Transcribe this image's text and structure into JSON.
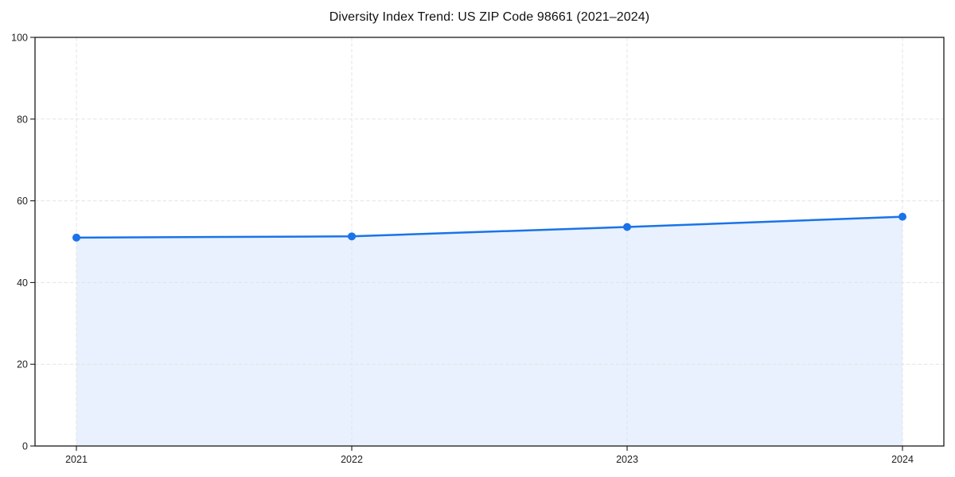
{
  "page": {
    "background": "#ffffff"
  },
  "chart_data": {
    "type": "area",
    "title": "Diversity Index Trend: US ZIP Code 98661 (2021–2024)",
    "x": [
      "2021",
      "2022",
      "2023",
      "2024"
    ],
    "series": [
      {
        "name": "Diversity Index",
        "values": [
          51.0,
          51.3,
          53.6,
          56.1
        ]
      }
    ],
    "xlabel": "",
    "ylabel": "",
    "ylim": [
      0,
      100
    ],
    "yticks": [
      0,
      20,
      40,
      60,
      80,
      100
    ],
    "grid": {
      "style": "dashed",
      "color": "#e0e3e8",
      "horizontal": true,
      "vertical": true
    },
    "legend": "none",
    "styles": {
      "line_color": "#1a73e8",
      "marker": "circle",
      "marker_size": 5,
      "fill_color": "#1a73e8",
      "fill_opacity": 0.1,
      "spine_color": "#1a1a1a",
      "text_color": "#1f1f1f"
    }
  }
}
